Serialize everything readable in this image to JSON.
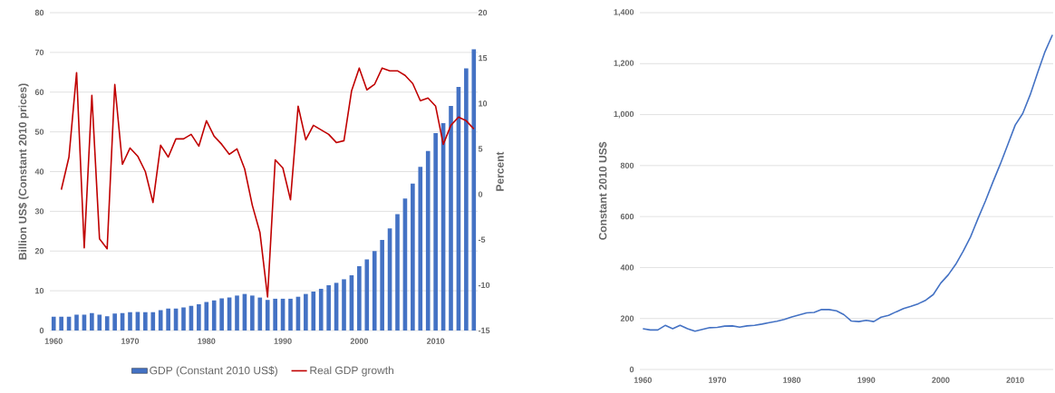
{
  "chart_data": [
    {
      "type": "bar",
      "ylabel": "Billion US$ (Constant 2010 prices)",
      "y2label": "Percent",
      "x": [
        1960,
        1961,
        1962,
        1963,
        1964,
        1965,
        1966,
        1967,
        1968,
        1969,
        1970,
        1971,
        1972,
        1973,
        1974,
        1975,
        1976,
        1977,
        1978,
        1979,
        1980,
        1981,
        1982,
        1983,
        1984,
        1985,
        1986,
        1987,
        1988,
        1989,
        1990,
        1991,
        1992,
        1993,
        1994,
        1995,
        1996,
        1997,
        1998,
        1999,
        2000,
        2001,
        2002,
        2003,
        2004,
        2005,
        2006,
        2007,
        2008,
        2009,
        2010,
        2011,
        2012,
        2013,
        2014,
        2015
      ],
      "series": [
        {
          "name": "GDP (Constant 2010 US$)",
          "color": "#4472c4",
          "values": [
            3.5,
            3.5,
            3.5,
            4.0,
            4.0,
            4.4,
            4.0,
            3.6,
            4.3,
            4.4,
            4.6,
            4.7,
            4.6,
            4.6,
            5.1,
            5.5,
            5.5,
            5.8,
            6.2,
            6.6,
            7.2,
            7.6,
            8.1,
            8.3,
            8.8,
            9.2,
            8.8,
            8.3,
            7.7,
            8.0,
            8.0,
            8.0,
            8.5,
            9.2,
            9.8,
            10.5,
            11.4,
            12.0,
            12.9,
            13.9,
            16.2,
            17.9,
            20.0,
            22.8,
            25.7,
            29.3,
            33.2,
            37.0,
            41.2,
            45.2,
            49.7,
            52.2,
            56.5,
            61.3,
            66.0,
            70.8
          ]
        },
        {
          "name": "Real GDP growth",
          "type": "line",
          "axis": "y2",
          "color": "#c00000",
          "x": [
            1961,
            1962,
            1963,
            1964,
            1965,
            1966,
            1967,
            1968,
            1969,
            1970,
            1971,
            1972,
            1973,
            1974,
            1975,
            1976,
            1977,
            1978,
            1979,
            1980,
            1981,
            1982,
            1983,
            1984,
            1985,
            1986,
            1987,
            1988,
            1989,
            1990,
            1991,
            1992,
            1993,
            1994,
            1995,
            1996,
            1997,
            1998,
            1999,
            2000,
            2001,
            2002,
            2003,
            2004,
            2005,
            2006,
            2007,
            2008,
            2009,
            2010,
            2011,
            2012,
            2013,
            2014,
            2015
          ],
          "values": [
            0.5,
            4.1,
            13.4,
            -5.9,
            10.9,
            -4.9,
            -6.0,
            12.1,
            3.3,
            5.1,
            4.2,
            2.5,
            -0.9,
            5.4,
            4.1,
            6.1,
            6.1,
            6.6,
            5.3,
            8.1,
            6.4,
            5.5,
            4.4,
            5.0,
            2.8,
            -1.2,
            -4.2,
            -11.3,
            3.8,
            2.9,
            -0.6,
            9.7,
            6.0,
            7.6,
            7.1,
            6.6,
            5.7,
            5.9,
            11.4,
            13.9,
            11.5,
            12.1,
            13.9,
            13.6,
            13.6,
            13.1,
            12.2,
            10.3,
            10.6,
            9.7,
            5.5,
            7.6,
            8.5,
            8.1,
            7.2
          ]
        }
      ],
      "xlim": [
        1959.5,
        2015.5
      ],
      "xticks": [
        1960,
        1970,
        1980,
        1990,
        2000,
        2010
      ],
      "ylim": [
        0,
        80
      ],
      "yticks": [
        0,
        10,
        20,
        30,
        40,
        50,
        60,
        70,
        80
      ],
      "y2lim": [
        -15,
        20
      ],
      "y2ticks": [
        -15,
        -10,
        -5,
        0,
        5,
        10,
        15,
        20
      ],
      "grid": "y",
      "legend": "bottom"
    },
    {
      "type": "line",
      "ylabel": "Constant 2010 US$",
      "x": [
        1960,
        1961,
        1962,
        1963,
        1964,
        1965,
        1966,
        1967,
        1968,
        1969,
        1970,
        1971,
        1972,
        1973,
        1974,
        1975,
        1976,
        1977,
        1978,
        1979,
        1980,
        1981,
        1982,
        1983,
        1984,
        1985,
        1986,
        1987,
        1988,
        1989,
        1990,
        1991,
        1992,
        1993,
        1994,
        1995,
        1996,
        1997,
        1998,
        1999,
        2000,
        2001,
        2002,
        2003,
        2004,
        2005,
        2006,
        2007,
        2008,
        2009,
        2010,
        2011,
        2012,
        2013,
        2014,
        2015
      ],
      "series": [
        {
          "color": "#4472c4",
          "values": [
            160,
            155,
            155,
            173,
            160,
            173,
            160,
            150,
            157,
            164,
            165,
            170,
            171,
            166,
            171,
            173,
            178,
            184,
            189,
            196,
            206,
            214,
            222,
            224,
            235,
            235,
            230,
            215,
            190,
            188,
            193,
            188,
            205,
            212,
            226,
            239,
            248,
            258,
            272,
            294,
            339,
            371,
            412,
            463,
            520,
            592,
            661,
            735,
            806,
            882,
            959,
            1004,
            1077,
            1164,
            1247,
            1313
          ]
        }
      ],
      "xlim": [
        1959.6,
        2015.1
      ],
      "xticks": [
        1960,
        1970,
        1980,
        1990,
        2000,
        2010
      ],
      "ylim": [
        0,
        1400
      ],
      "yticks": [
        0,
        200,
        400,
        600,
        800,
        {
          "value": 1000,
          "label": "1,000"
        },
        {
          "value": 1200,
          "label": "1,200"
        },
        {
          "value": 1400,
          "label": "1,400"
        }
      ],
      "grid": "y"
    }
  ]
}
